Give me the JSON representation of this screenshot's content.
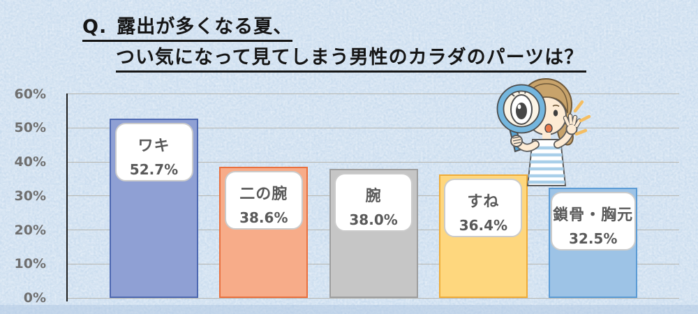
{
  "title": {
    "q": "Q.",
    "line1": "露出が多くなる夏、",
    "line2": "つい気になって見てしまう男性のカラダのパーツは？"
  },
  "chart_data": {
    "type": "bar",
    "title": "Q. 露出が多くなる夏、つい気になって見てしまう男性のカラダのパーツは？",
    "categories": [
      "ワキ",
      "二の腕",
      "腕",
      "すね",
      "鎖骨・胸元"
    ],
    "values": [
      52.7,
      38.6,
      38.0,
      36.4,
      32.5
    ],
    "value_labels": [
      "52.7%",
      "38.6%",
      "38.0%",
      "36.4%",
      "32.5%"
    ],
    "y_ticks": [
      "60%",
      "50%",
      "40%",
      "30%",
      "20%",
      "10%",
      "0%"
    ],
    "ylim": [
      0,
      60
    ],
    "xlabel": "",
    "ylabel": "",
    "grid": true,
    "legend": false,
    "bar_fill_colors": [
      "#8FA0D4",
      "#F7AC89",
      "#C6C6C6",
      "#FED77E",
      "#9DC3E6"
    ],
    "bar_border_colors": [
      "#4D68B1",
      "#E9703E",
      "#9E9E9E",
      "#EFAC38",
      "#5B9BD5"
    ],
    "label_text_color": "#595959",
    "tick_text_color": "#6f6f6f"
  },
  "illustration": {
    "name": "woman-with-magnifying-glass"
  },
  "background_color": "#CBDDEE"
}
